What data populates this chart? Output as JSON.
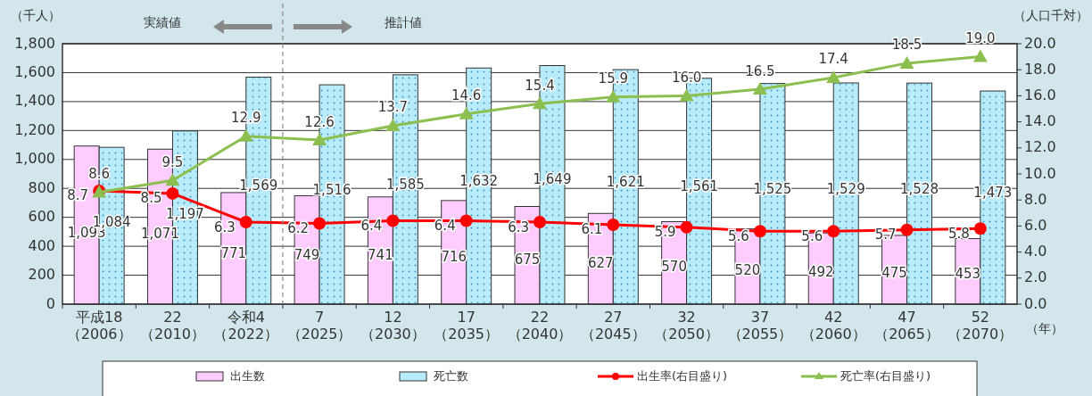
{
  "chart_data": {
    "type": "bar",
    "categories": [
      "平成18\n（2006）",
      "22\n（2010）",
      "令和4\n（2022）",
      "7\n（2025）",
      "12\n（2030）",
      "17\n（2035）",
      "22\n（2040）",
      "27\n（2045）",
      "32\n（2050）",
      "37\n（2055）",
      "42\n（2060）",
      "47\n（2065）",
      "52\n（2070）"
    ],
    "series": [
      {
        "name": "出生数",
        "color": "#ffccff",
        "values": [
          1093,
          1071,
          771,
          749,
          741,
          716,
          675,
          627,
          570,
          520,
          492,
          475,
          453
        ],
        "value_labels": [
          "1,093",
          "1,071",
          "771",
          "749",
          "741",
          "716",
          "675",
          "627",
          "570",
          "520",
          "492",
          "475",
          "453"
        ]
      },
      {
        "name": "死亡数",
        "color": "#b8ecfa",
        "values": [
          1084,
          1197,
          1569,
          1516,
          1585,
          1632,
          1649,
          1621,
          1561,
          1525,
          1529,
          1528,
          1473
        ],
        "value_labels": [
          "1,084",
          "1,197",
          "1,569",
          "1,516",
          "1,585",
          "1,632",
          "1,649",
          "1,621",
          "1,561",
          "1,525",
          "1,529",
          "1,528",
          "1,473"
        ]
      },
      {
        "name": "出生率(右目盛り)",
        "type": "line",
        "axis": "y2",
        "color": "#ff0000",
        "marker": "circle",
        "values": [
          8.7,
          8.5,
          6.3,
          6.2,
          6.4,
          6.4,
          6.3,
          6.1,
          5.9,
          5.6,
          5.6,
          5.7,
          5.8
        ],
        "value_labels": [
          "8.7",
          "8.5",
          "6.3",
          "6.2",
          "6.4",
          "6.4",
          "6.3",
          "6.1",
          "5.9",
          "5.6",
          "5.6",
          "5.7",
          "5.8"
        ]
      },
      {
        "name": "死亡率(右目盛り)",
        "type": "line",
        "axis": "y2",
        "color": "#8cbf4f",
        "marker": "triangle",
        "values": [
          8.6,
          9.5,
          12.9,
          12.6,
          13.7,
          14.6,
          15.4,
          15.9,
          16.0,
          16.5,
          17.4,
          18.5,
          19.0
        ],
        "value_labels": [
          "8.6",
          "9.5",
          "12.9",
          "12.6",
          "13.7",
          "14.6",
          "15.4",
          "15.9",
          "16.0",
          "16.5",
          "17.4",
          "18.5",
          "19.0"
        ]
      }
    ],
    "ylim": [
      0,
      1800
    ],
    "yticks": [
      {
        "value": 0,
        "label": "0"
      },
      {
        "value": 200,
        "label": "200"
      },
      {
        "value": 400,
        "label": "400"
      },
      {
        "value": 600,
        "label": "600"
      },
      {
        "value": 800,
        "label": "800"
      },
      {
        "value": 1000,
        "label": "1,000"
      },
      {
        "value": 1200,
        "label": "1,200"
      },
      {
        "value": 1400,
        "label": "1,400"
      },
      {
        "value": 1600,
        "label": "1,600"
      },
      {
        "value": 1800,
        "label": "1,800"
      }
    ],
    "y2lim": [
      0,
      20
    ],
    "y2ticks": [
      {
        "value": 0,
        "label": "0.0"
      },
      {
        "value": 2,
        "label": "2.0"
      },
      {
        "value": 4,
        "label": "4.0"
      },
      {
        "value": 6,
        "label": "6.0"
      },
      {
        "value": 8,
        "label": "8.0"
      },
      {
        "value": 10,
        "label": "10.0"
      },
      {
        "value": 12,
        "label": "12.0"
      },
      {
        "value": 14,
        "label": "14.0"
      },
      {
        "value": 16,
        "label": "16.0"
      },
      {
        "value": 18,
        "label": "18.0"
      },
      {
        "value": 20,
        "label": "20.0"
      }
    ],
    "ylabel": "（千人）",
    "y2label": "（人口千対）",
    "xlabel": "（年）",
    "grid": "y",
    "legend": "bottom",
    "annotations": [
      "実績値",
      "推計値"
    ]
  }
}
